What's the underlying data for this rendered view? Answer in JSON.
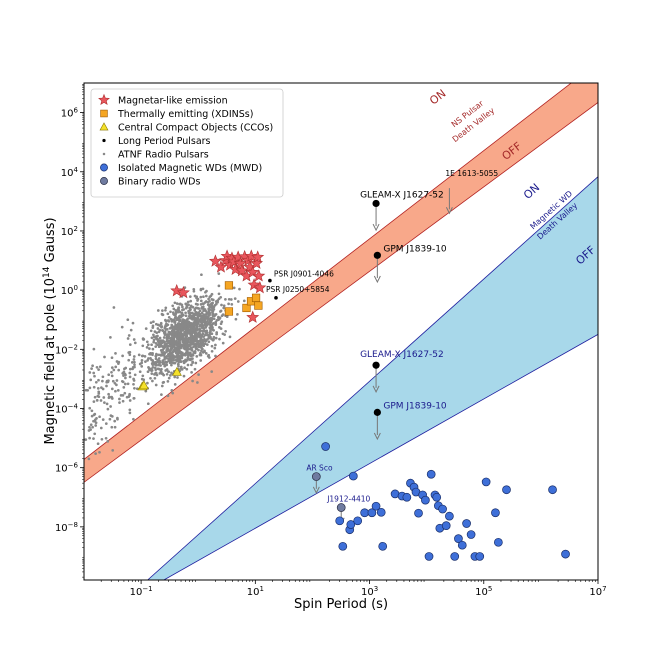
{
  "chart_data": {
    "type": "scatter",
    "xlabel": "Spin Period (s)",
    "ylabel": "Magnetic field at pole (10",
    "ylabel_sup": "14",
    "ylabel_end": " Gauss)",
    "x_scale": "log",
    "y_scale": "log",
    "xlim": [
      0.01,
      10000000
    ],
    "ylim": [
      1.6e-10,
      10000000
    ],
    "x_ticks": [
      {
        "v": 0.1,
        "base": "10",
        "exp": "−1"
      },
      {
        "v": 10,
        "base": "10",
        "exp": "1"
      },
      {
        "v": 1000,
        "base": "10",
        "exp": "3"
      },
      {
        "v": 100000,
        "base": "10",
        "exp": "5"
      },
      {
        "v": 10000000,
        "base": "10",
        "exp": "7"
      }
    ],
    "y_ticks": [
      {
        "v": 1e-08,
        "base": "10",
        "exp": "−8"
      },
      {
        "v": 1e-06,
        "base": "10",
        "exp": "−6"
      },
      {
        "v": 0.0001,
        "base": "10",
        "exp": "−4"
      },
      {
        "v": 0.01,
        "base": "10",
        "exp": "−2"
      },
      {
        "v": 1,
        "base": "10",
        "exp": "0"
      },
      {
        "v": 100,
        "base": "10",
        "exp": "2"
      },
      {
        "v": 10000,
        "base": "10",
        "exp": "4"
      },
      {
        "v": 1000000,
        "base": "10",
        "exp": "6"
      }
    ],
    "legend_position": "top-left",
    "bands": [
      {
        "name": "NS Pulsar Death Valley",
        "label_lines": [
          "NS Pulsar",
          "Death Valley"
        ],
        "on_label": "ON",
        "off_label": "OFF",
        "fill": "#f8a88a",
        "stroke": "#b22222",
        "text_color": "#a52a2a",
        "upper": [
          [
            0.01,
            1.9e-06
          ],
          [
            10000000,
            50000000
          ]
        ],
        "lower": [
          [
            0.01,
            3.2e-07
          ],
          [
            10000000,
            2200000
          ]
        ]
      },
      {
        "name": "Magnetic WD Death Valley",
        "label_lines": [
          "Magnetic WD",
          "Death Valley"
        ],
        "on_label": "ON",
        "off_label": "OFF",
        "fill": "#a8d8ea",
        "stroke": "#1f1f9f",
        "text_color": "#1a1a8c",
        "upper": [
          [
            0.13,
            1.6e-10
          ],
          [
            10000000,
            6800
          ]
        ],
        "lower": [
          [
            0.25,
            1.6e-10
          ],
          [
            10000000,
            0.032
          ]
        ]
      }
    ],
    "series": [
      {
        "name": "Magnetar-like emission",
        "marker": "star",
        "color": "#e8565c",
        "edge": "#b03030",
        "points": [
          [
            0.42,
            0.95
          ],
          [
            0.55,
            0.82
          ],
          [
            2.0,
            9.5
          ],
          [
            2.5,
            6.0
          ],
          [
            3.0,
            10.0
          ],
          [
            3.2,
            14.0
          ],
          [
            3.6,
            7.0
          ],
          [
            3.9,
            12.0
          ],
          [
            4.2,
            9.0
          ],
          [
            4.5,
            5.0
          ],
          [
            5.0,
            13.0
          ],
          [
            5.5,
            8.0
          ],
          [
            5.8,
            4.5
          ],
          [
            6.5,
            13.5
          ],
          [
            7.0,
            3.0
          ],
          [
            7.5,
            10.0
          ],
          [
            8.0,
            6.0
          ],
          [
            8.5,
            14.0
          ],
          [
            9.0,
            4.0
          ],
          [
            9.5,
            1.5
          ],
          [
            10.5,
            8.0
          ],
          [
            11.0,
            13.0
          ],
          [
            11.5,
            3.0
          ],
          [
            12.0,
            1.2
          ],
          [
            9.0,
            0.12
          ]
        ]
      },
      {
        "name": "Thermally emitting (XDINSs)",
        "marker": "square",
        "color": "#f5a623",
        "edge": "#a05a00",
        "points": [
          [
            3.45,
            1.45
          ],
          [
            3.45,
            0.19
          ],
          [
            7.0,
            0.25
          ],
          [
            8.4,
            0.42
          ],
          [
            10.3,
            0.55
          ],
          [
            11.3,
            0.3
          ]
        ]
      },
      {
        "name": "Central Compact Objects (CCOs)",
        "marker": "triangle",
        "color": "#f5e12a",
        "edge": "#8a7a00",
        "points": [
          [
            0.105,
            0.00055
          ],
          [
            0.112,
            0.0006
          ],
          [
            0.424,
            0.0017
          ]
        ]
      },
      {
        "name": "Long Period Pulsars",
        "marker": "dot",
        "color": "#000000",
        "edge": "#000000",
        "points": [
          [
            18,
            2.1
          ],
          [
            23,
            0.55
          ]
        ]
      },
      {
        "name": "ATNF Radio Pulsars",
        "marker": "tiny",
        "color": "#888888",
        "edge": "#888888",
        "points": []
      },
      {
        "name": "Isolated Magnetic WDs (MWD)",
        "marker": "circle",
        "color": "#3e6fd8",
        "edge": "#1a2f6a",
        "points": [
          [
            170,
            5.2e-06
          ],
          [
            520,
            5.2e-07
          ],
          [
            300,
            1.6e-08
          ],
          [
            340,
            2.2e-09
          ],
          [
            450,
            8e-09
          ],
          [
            470,
            1.2e-08
          ],
          [
            620,
            1.6e-08
          ],
          [
            820,
            3e-08
          ],
          [
            1100,
            3e-08
          ],
          [
            1300,
            5e-08
          ],
          [
            1600,
            3.1e-08
          ],
          [
            1700,
            2.2e-09
          ],
          [
            2800,
            1.3e-07
          ],
          [
            3700,
            1.1e-07
          ],
          [
            4500,
            1e-07
          ],
          [
            5200,
            3e-07
          ],
          [
            6000,
            2.2e-07
          ],
          [
            6500,
            1.5e-07
          ],
          [
            7200,
            2.9e-08
          ],
          [
            8500,
            1.2e-07
          ],
          [
            9500,
            8e-08
          ],
          [
            11000,
            1e-09
          ],
          [
            12000,
            6e-07
          ],
          [
            14000,
            1.2e-07
          ],
          [
            16000,
            5.2e-08
          ],
          [
            17000,
            9e-09
          ],
          [
            19000,
            4e-08
          ],
          [
            22000,
            1.1e-08
          ],
          [
            25000,
            2.3e-08
          ],
          [
            31000,
            1e-09
          ],
          [
            36000,
            4e-09
          ],
          [
            42000,
            2.4e-09
          ],
          [
            50000,
            1.3e-08
          ],
          [
            60000,
            5.5e-09
          ],
          [
            70000,
            1e-09
          ],
          [
            85000,
            1e-09
          ],
          [
            110000,
            3.3e-07
          ],
          [
            160000,
            3e-08
          ],
          [
            180000,
            3e-09
          ],
          [
            250000,
            1.8e-07
          ],
          [
            1600000,
            1.8e-07
          ],
          [
            2700000,
            1.2e-09
          ],
          [
            15000,
            1e-07
          ]
        ]
      },
      {
        "name": "Binary radio WDs",
        "marker": "circle",
        "color": "#6f7ba0",
        "edge": "#2a2f45",
        "points": [
          [
            117,
            5e-07
          ],
          [
            319,
            4.5e-08
          ]
        ]
      }
    ],
    "arrows": [
      {
        "x": 117,
        "y": 5e-07,
        "len": 0.55,
        "color": "#777777"
      },
      {
        "x": 319,
        "y": 4.5e-08,
        "len": 0.55,
        "color": "#777777"
      },
      {
        "x": 1300,
        "y": 850,
        "len": 0.9,
        "color": "#777777"
      },
      {
        "x": 1370,
        "y": 15,
        "len": 0.9,
        "color": "#777777"
      },
      {
        "x": 1300,
        "y": 0.0029,
        "len": 0.9,
        "color": "#777777"
      },
      {
        "x": 1370,
        "y": 7.4e-05,
        "len": 0.9,
        "color": "#777777"
      },
      {
        "x": 25000,
        "y": 2800,
        "len": 0.85,
        "color": "#777777"
      }
    ],
    "highlight_points": [
      {
        "x": 1300,
        "y": 850
      },
      {
        "x": 1370,
        "y": 15
      },
      {
        "x": 1300,
        "y": 0.0029
      },
      {
        "x": 1370,
        "y": 7.4e-05
      }
    ],
    "annotations": [
      {
        "text": "GLEAM-X J1627-52",
        "x": 1300,
        "y": 850,
        "dx": -16,
        "dy": -6,
        "anchor": "start",
        "color": "#000000",
        "size": 9
      },
      {
        "text": "GPM J1839-10",
        "x": 1370,
        "y": 15,
        "dx": 6,
        "dy": -4,
        "anchor": "start",
        "color": "#000000",
        "size": 9
      },
      {
        "text": "GLEAM-X J1627-52",
        "x": 1300,
        "y": 0.0029,
        "dx": -16,
        "dy": -8,
        "anchor": "start",
        "color": "#1a1a8c",
        "size": 9
      },
      {
        "text": "GPM J1839-10",
        "x": 1370,
        "y": 7.4e-05,
        "dx": 6,
        "dy": -4,
        "anchor": "start",
        "color": "#1a1a8c",
        "size": 9
      },
      {
        "text": "PSR J0901-4046",
        "x": 18,
        "y": 2.1,
        "dx": 4,
        "dy": -4,
        "anchor": "start",
        "color": "#000000",
        "size": 7.5
      },
      {
        "text": "PSR J0250+5854",
        "x": 23,
        "y": 0.55,
        "dx": -10,
        "dy": -6,
        "anchor": "start",
        "color": "#000000",
        "size": 7.5
      },
      {
        "text": "1E 1613-5055",
        "x": 25000,
        "y": 2800,
        "dx": -4,
        "dy": -12,
        "anchor": "start",
        "color": "#000000",
        "size": 7.5
      },
      {
        "text": "AR Sco",
        "x": 117,
        "y": 5e-07,
        "dx": -10,
        "dy": -6,
        "anchor": "start",
        "color": "#1a1a8c",
        "size": 7.5
      },
      {
        "text": "J1912-4410",
        "x": 319,
        "y": 4.5e-08,
        "dx": -14,
        "dy": -6,
        "anchor": "start",
        "color": "#1a1a8c",
        "size": 7.5
      }
    ]
  }
}
